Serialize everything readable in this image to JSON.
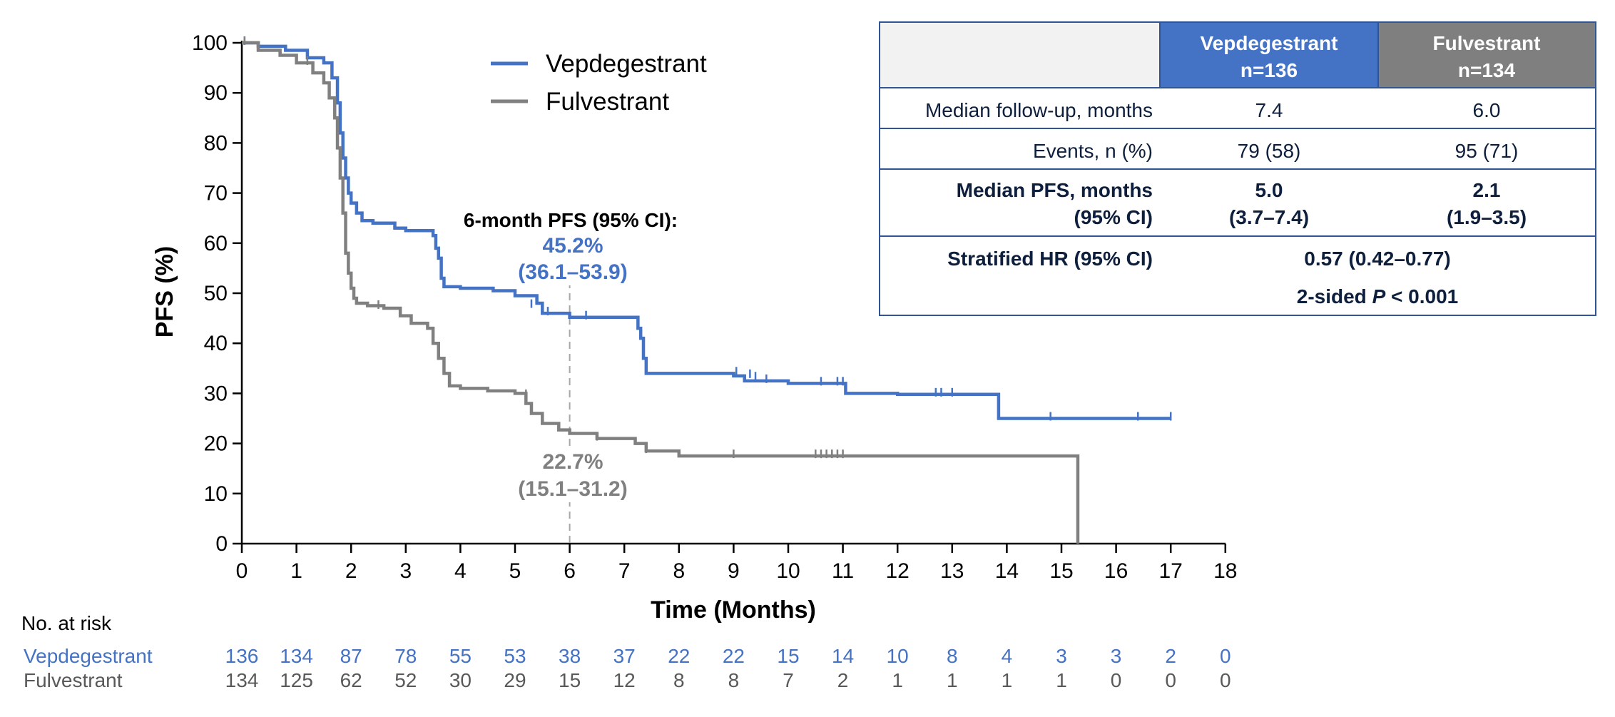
{
  "chart_data": {
    "type": "line",
    "subtype": "kaplan-meier step",
    "title": "",
    "xlabel": "Time (Months)",
    "ylabel": "PFS (%)",
    "xlim": [
      0,
      18
    ],
    "ylim": [
      0,
      100
    ],
    "x_ticks": [
      0,
      1,
      2,
      3,
      4,
      5,
      6,
      7,
      8,
      9,
      10,
      11,
      12,
      13,
      14,
      15,
      16,
      17,
      18
    ],
    "y_ticks": [
      0,
      10,
      20,
      30,
      40,
      50,
      60,
      70,
      80,
      90,
      100
    ],
    "grid": false,
    "legend_position": "top-center",
    "series": [
      {
        "name": "Vepdegestrant",
        "color": "#4472C4",
        "x": [
          0,
          0.3,
          0.8,
          1.2,
          1.5,
          1.65,
          1.75,
          1.8,
          1.85,
          1.9,
          1.95,
          2.0,
          2.1,
          2.2,
          2.4,
          2.8,
          3.0,
          3.5,
          3.55,
          3.6,
          3.65,
          3.7,
          4.0,
          4.6,
          5.0,
          5.4,
          5.5,
          6.0,
          7.2,
          7.25,
          7.3,
          7.35,
          7.4,
          8.5,
          9.0,
          9.2,
          10.0,
          11.0,
          11.05,
          12.0,
          13.8,
          13.85,
          14.0,
          17.0
        ],
        "y": [
          100,
          99.3,
          98.5,
          97.0,
          96.0,
          93.0,
          88.0,
          82.0,
          77.0,
          73.0,
          70.0,
          68.0,
          66.0,
          64.5,
          64.0,
          63.0,
          62.5,
          61.5,
          59.0,
          57.0,
          53.0,
          51.3,
          51.0,
          50.5,
          49.5,
          48.0,
          46.0,
          45.2,
          45.2,
          43.0,
          41.0,
          37.0,
          34.0,
          34.0,
          33.5,
          32.5,
          32.0,
          32.0,
          30.0,
          29.8,
          29.8,
          25.0,
          25.0,
          25.0
        ],
        "censor_x": [
          0.05,
          5.3,
          5.5,
          5.6,
          6.3,
          9.05,
          9.3,
          9.4,
          9.6,
          10.6,
          10.9,
          11.0,
          12.7,
          12.8,
          13.0,
          14.8,
          16.4,
          17.0
        ],
        "censor_y": [
          100,
          47.5,
          46.5,
          46.0,
          45.2,
          34.0,
          33.5,
          33.0,
          32.5,
          32.0,
          32.0,
          32.0,
          29.8,
          29.8,
          29.8,
          25.0,
          25.0,
          25.0
        ]
      },
      {
        "name": "Fulvestrant",
        "color": "#808080",
        "x": [
          0,
          0.3,
          0.7,
          1.0,
          1.3,
          1.5,
          1.6,
          1.7,
          1.75,
          1.8,
          1.85,
          1.9,
          1.95,
          2.0,
          2.05,
          2.1,
          2.3,
          2.6,
          2.9,
          3.1,
          3.4,
          3.5,
          3.6,
          3.7,
          3.8,
          4.0,
          4.5,
          5.0,
          5.2,
          5.3,
          5.5,
          5.8,
          6.0,
          6.5,
          7.2,
          7.4,
          8.0,
          9.0,
          10.0,
          11.0,
          15.3
        ],
        "y": [
          100,
          98.5,
          97.5,
          96.0,
          94.0,
          92.0,
          89.0,
          85.0,
          79.0,
          73.0,
          66.0,
          58.0,
          54.0,
          51.0,
          49.0,
          48.0,
          47.5,
          47.0,
          45.5,
          44.0,
          43.0,
          40.0,
          37.0,
          34.0,
          31.5,
          31.0,
          30.5,
          30.0,
          28.0,
          26.0,
          24.0,
          22.7,
          22.0,
          21.0,
          20.0,
          18.5,
          17.5,
          17.5,
          17.5,
          17.5,
          0
        ],
        "censor_x": [
          0.05,
          1.2,
          2.5,
          5.2,
          6.5,
          7.4,
          9.0,
          10.5,
          10.6,
          10.7,
          10.8,
          10.9,
          11.0
        ],
        "censor_y": [
          100,
          96.0,
          47.3,
          29.5,
          21.0,
          18.5,
          17.5,
          17.5,
          17.5,
          17.5,
          17.5,
          17.5,
          17.5
        ]
      }
    ],
    "landmark": {
      "x": 6,
      "title": "6-month PFS (95% CI):",
      "blue_value": "45.2%",
      "blue_ci": "(36.1–53.9)",
      "grey_value": "22.7%",
      "grey_ci": "(15.1–31.2)"
    },
    "risk_table": {
      "heading": "No. at risk",
      "rows": [
        {
          "label": "Vepdegestrant",
          "values": [
            "136",
            "134",
            "87",
            "78",
            "55",
            "53",
            "38",
            "37",
            "22",
            "22",
            "15",
            "14",
            "10",
            "8",
            "4",
            "3",
            "3",
            "2",
            "0"
          ]
        },
        {
          "label": "Fulvestrant",
          "values": [
            "134",
            "125",
            "62",
            "52",
            "30",
            "29",
            "15",
            "12",
            "8",
            "8",
            "7",
            "2",
            "1",
            "1",
            "1",
            "1",
            "0",
            "0",
            "0"
          ]
        }
      ]
    },
    "summary_table": {
      "col1_header": "Vepdegestrant",
      "col1_sub": "n=136",
      "col2_header": "Fulvestrant",
      "col2_sub": "n=134",
      "row1_label": "Median follow-up, months",
      "row1_v1": "7.4",
      "row1_v2": "6.0",
      "row2_label": "Events, n (%)",
      "row2_v1": "79 (58)",
      "row2_v2": "95 (71)",
      "row3_label_a": "Median PFS, months",
      "row3_label_b": "(95% CI)",
      "row3_v1a": "5.0",
      "row3_v1b": "(3.7–7.4)",
      "row3_v2a": "2.1",
      "row3_v2b": "(1.9–3.5)",
      "row4_label": "Stratified HR (95% CI)",
      "row4_value": "0.57 (0.42–0.77)",
      "row5_prefix": "2-sided ",
      "row5_p": "P",
      "row5_suffix": " < 0.001"
    },
    "colors": {
      "vep": "#4472C4",
      "ful": "#808080",
      "table_border": "#2F5597",
      "header_blank": "#F2F2F2",
      "header_vep": "#4472C4",
      "header_ful": "#7F7F7F"
    }
  }
}
